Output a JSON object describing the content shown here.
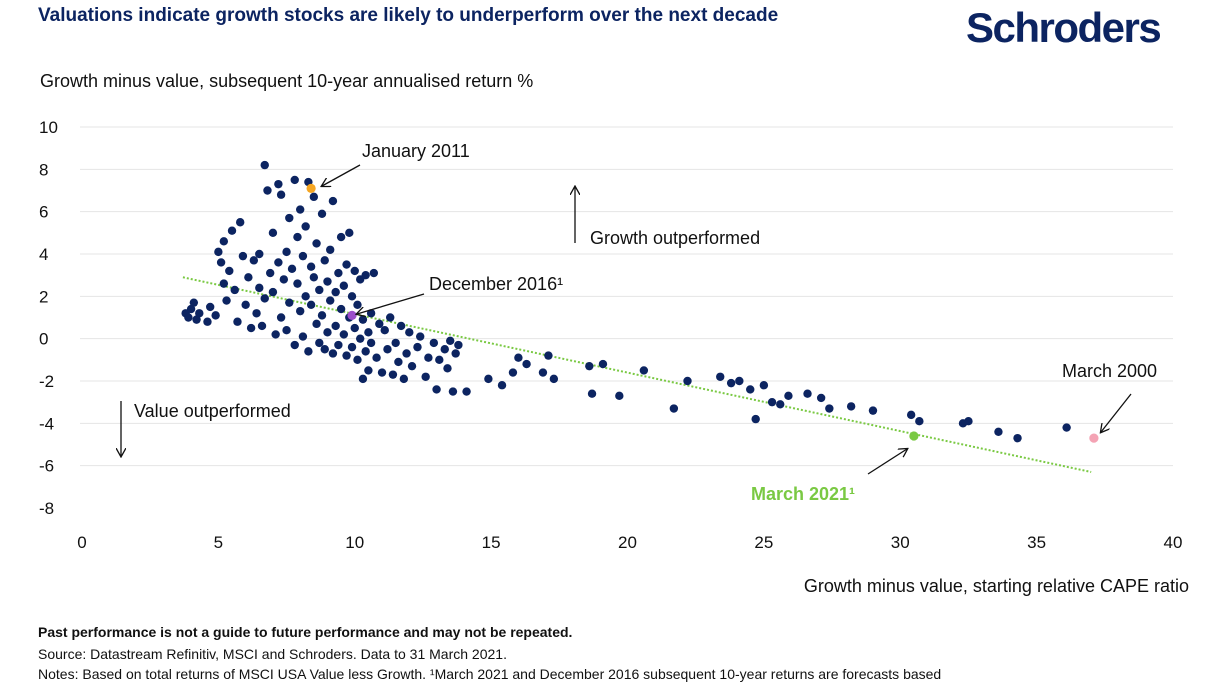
{
  "title": "Valuations indicate growth stocks are likely to underperform over the next decade",
  "logo": "Schroders",
  "footer": {
    "disclaimer": "Past performance is not a guide to future performance and may not be repeated.",
    "source": "Source: Datastream Refinitiv, MSCI and Schroders. Data to 31 March 2021.",
    "notes": "Notes: Based on total returns of MSCI USA Value less Growth. ¹March 2021 and December 2016 subsequent 10-year returns are forecasts based"
  },
  "colors": {
    "dots": "#0c2461",
    "highlight_jan2011": "#f5a623",
    "highlight_dec2016": "#9b4dca",
    "highlight_mar2021": "#7ac943",
    "highlight_mar2000": "#f4a3b4",
    "trendline": "#7ac943"
  },
  "chart_data": {
    "type": "scatter",
    "title": "Valuations indicate growth stocks are likely to underperform over the next decade",
    "xlabel": "Growth minus value, starting relative CAPE ratio",
    "ylabel": "Growth minus value, subsequent 10-year annualised return %",
    "xlim": [
      0,
      40
    ],
    "ylim": [
      -8,
      10
    ],
    "x_ticks": [
      "0",
      "5",
      "10",
      "15",
      "20",
      "25",
      "30",
      "35",
      "40"
    ],
    "y_ticks": [
      "10",
      "8",
      "6",
      "4",
      "2",
      "0",
      "-2",
      "-4",
      "-6",
      "-8"
    ],
    "grid": "horizontal",
    "legend": "none",
    "annotations": {
      "growth": "Growth outperformed",
      "value": "Value outperformed",
      "jan2011": "January 2011",
      "dec2016": "December 2016¹",
      "mar2000": "March 2000",
      "mar2021": "March 2021¹"
    },
    "trendline": {
      "x": [
        3.7,
        37
      ],
      "y": [
        2.9,
        -6.3
      ]
    },
    "highlights": [
      {
        "label": "January 2011",
        "x": 8.4,
        "y": 7.1
      },
      {
        "label": "December 2016¹",
        "x": 9.9,
        "y": 1.1
      },
      {
        "label": "March 2021¹",
        "x": 30.5,
        "y": -4.6
      },
      {
        "label": "March 2000",
        "x": 37.1,
        "y": -4.7
      }
    ],
    "points": [
      [
        3.8,
        1.2
      ],
      [
        3.9,
        1.0
      ],
      [
        4.0,
        1.4
      ],
      [
        4.1,
        1.7
      ],
      [
        4.2,
        0.9
      ],
      [
        4.3,
        1.2
      ],
      [
        4.6,
        0.8
      ],
      [
        4.7,
        1.5
      ],
      [
        4.9,
        1.1
      ],
      [
        5.0,
        4.1
      ],
      [
        5.1,
        3.6
      ],
      [
        5.2,
        2.6
      ],
      [
        5.2,
        4.6
      ],
      [
        5.3,
        1.8
      ],
      [
        5.4,
        3.2
      ],
      [
        5.5,
        5.1
      ],
      [
        5.6,
        2.3
      ],
      [
        5.7,
        0.8
      ],
      [
        5.8,
        5.5
      ],
      [
        5.9,
        3.9
      ],
      [
        6.0,
        1.6
      ],
      [
        6.1,
        2.9
      ],
      [
        6.2,
        0.5
      ],
      [
        6.3,
        3.7
      ],
      [
        6.4,
        1.2
      ],
      [
        6.5,
        2.4
      ],
      [
        6.5,
        4.0
      ],
      [
        6.6,
        0.6
      ],
      [
        6.7,
        8.2
      ],
      [
        6.7,
        1.9
      ],
      [
        6.8,
        7.0
      ],
      [
        6.9,
        3.1
      ],
      [
        7.0,
        5.0
      ],
      [
        7.0,
        2.2
      ],
      [
        7.1,
        0.2
      ],
      [
        7.2,
        7.3
      ],
      [
        7.2,
        3.6
      ],
      [
        7.3,
        1.0
      ],
      [
        7.3,
        6.8
      ],
      [
        7.4,
        2.8
      ],
      [
        7.5,
        4.1
      ],
      [
        7.5,
        0.4
      ],
      [
        7.6,
        5.7
      ],
      [
        7.6,
        1.7
      ],
      [
        7.7,
        3.3
      ],
      [
        7.8,
        7.5
      ],
      [
        7.8,
        -0.3
      ],
      [
        7.9,
        2.6
      ],
      [
        7.9,
        4.8
      ],
      [
        8.0,
        1.3
      ],
      [
        8.0,
        6.1
      ],
      [
        8.1,
        3.9
      ],
      [
        8.1,
        0.1
      ],
      [
        8.2,
        5.3
      ],
      [
        8.2,
        2.0
      ],
      [
        8.3,
        7.4
      ],
      [
        8.3,
        -0.6
      ],
      [
        8.4,
        3.4
      ],
      [
        8.4,
        1.6
      ],
      [
        8.5,
        6.7
      ],
      [
        8.5,
        2.9
      ],
      [
        8.6,
        0.7
      ],
      [
        8.6,
        4.5
      ],
      [
        8.7,
        -0.2
      ],
      [
        8.7,
        2.3
      ],
      [
        8.8,
        5.9
      ],
      [
        8.8,
        1.1
      ],
      [
        8.9,
        3.7
      ],
      [
        8.9,
        -0.5
      ],
      [
        9.0,
        2.7
      ],
      [
        9.0,
        0.3
      ],
      [
        9.1,
        4.2
      ],
      [
        9.1,
        1.8
      ],
      [
        9.2,
        -0.7
      ],
      [
        9.2,
        6.5
      ],
      [
        9.3,
        2.2
      ],
      [
        9.3,
        0.6
      ],
      [
        9.4,
        3.1
      ],
      [
        9.4,
        -0.3
      ],
      [
        9.5,
        1.4
      ],
      [
        9.5,
        4.8
      ],
      [
        9.6,
        0.2
      ],
      [
        9.6,
        2.5
      ],
      [
        9.7,
        -0.8
      ],
      [
        9.7,
        3.5
      ],
      [
        9.8,
        1.0
      ],
      [
        9.8,
        5.0
      ],
      [
        9.9,
        -0.4
      ],
      [
        9.9,
        2.0
      ],
      [
        10.0,
        0.5
      ],
      [
        10.0,
        3.2
      ],
      [
        10.1,
        -1.0
      ],
      [
        10.1,
        1.6
      ],
      [
        10.2,
        0.0
      ],
      [
        10.2,
        2.8
      ],
      [
        10.3,
        -1.9
      ],
      [
        10.3,
        0.9
      ],
      [
        10.4,
        -0.6
      ],
      [
        10.4,
        3.0
      ],
      [
        10.5,
        0.3
      ],
      [
        10.5,
        -1.5
      ],
      [
        10.6,
        1.2
      ],
      [
        10.6,
        -0.2
      ],
      [
        10.7,
        3.1
      ],
      [
        10.8,
        -0.9
      ],
      [
        10.9,
        0.7
      ],
      [
        11.0,
        -1.6
      ],
      [
        11.1,
        0.4
      ],
      [
        11.2,
        -0.5
      ],
      [
        11.3,
        1.0
      ],
      [
        11.4,
        -1.7
      ],
      [
        11.5,
        -0.2
      ],
      [
        11.6,
        -1.1
      ],
      [
        11.7,
        0.6
      ],
      [
        11.8,
        -1.9
      ],
      [
        11.9,
        -0.7
      ],
      [
        12.0,
        0.3
      ],
      [
        12.1,
        -1.3
      ],
      [
        12.3,
        -0.4
      ],
      [
        12.4,
        0.1
      ],
      [
        12.6,
        -1.8
      ],
      [
        12.7,
        -0.9
      ],
      [
        12.9,
        -0.2
      ],
      [
        13.0,
        -2.4
      ],
      [
        13.1,
        -1.0
      ],
      [
        13.3,
        -0.5
      ],
      [
        13.4,
        -1.4
      ],
      [
        13.5,
        -0.1
      ],
      [
        13.6,
        -2.5
      ],
      [
        13.7,
        -0.7
      ],
      [
        13.8,
        -0.3
      ],
      [
        14.1,
        -2.5
      ],
      [
        14.9,
        -1.9
      ],
      [
        15.4,
        -2.2
      ],
      [
        15.8,
        -1.6
      ],
      [
        16.0,
        -0.9
      ],
      [
        16.3,
        -1.2
      ],
      [
        16.9,
        -1.6
      ],
      [
        17.1,
        -0.8
      ],
      [
        17.3,
        -1.9
      ],
      [
        18.6,
        -1.3
      ],
      [
        18.7,
        -2.6
      ],
      [
        19.1,
        -1.2
      ],
      [
        19.7,
        -2.7
      ],
      [
        20.6,
        -1.5
      ],
      [
        21.7,
        -3.3
      ],
      [
        22.2,
        -2.0
      ],
      [
        23.4,
        -1.8
      ],
      [
        23.8,
        -2.1
      ],
      [
        24.1,
        -2.0
      ],
      [
        24.5,
        -2.4
      ],
      [
        24.7,
        -3.8
      ],
      [
        25.0,
        -2.2
      ],
      [
        25.3,
        -3.0
      ],
      [
        25.6,
        -3.1
      ],
      [
        25.9,
        -2.7
      ],
      [
        26.6,
        -2.6
      ],
      [
        27.1,
        -2.8
      ],
      [
        27.4,
        -3.3
      ],
      [
        28.2,
        -3.2
      ],
      [
        29.0,
        -3.4
      ],
      [
        30.4,
        -3.6
      ],
      [
        30.7,
        -3.9
      ],
      [
        32.3,
        -4.0
      ],
      [
        32.5,
        -3.9
      ],
      [
        33.6,
        -4.4
      ],
      [
        34.3,
        -4.7
      ],
      [
        36.1,
        -4.2
      ]
    ]
  }
}
